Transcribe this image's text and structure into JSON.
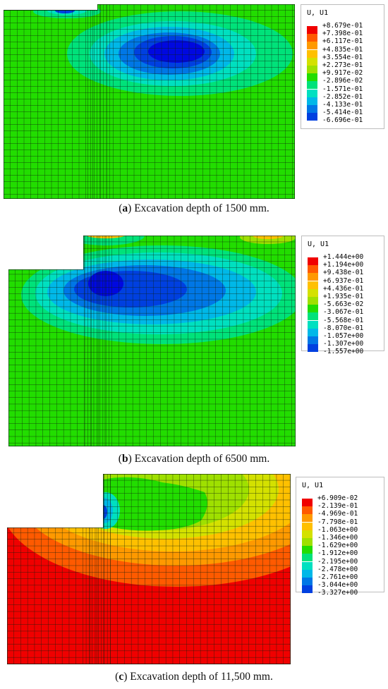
{
  "colors": {
    "red": "#f00000",
    "orange_red": "#ff5a00",
    "orange": "#ff9900",
    "light_orange": "#ffc000",
    "yellow_green": "#d4e100",
    "yellow_green2": "#9fe000",
    "green": "#22dd00",
    "cyan_green": "#00e27a",
    "cyan": "#00e0c0",
    "light_blue": "#00b8e8",
    "mid_blue": "#0077e6",
    "blue": "#0040e0",
    "deep_blue": "#0008e0",
    "mesh": "#0b1f0b"
  },
  "panels": [
    {
      "label": "a",
      "caption_text": "Excavation depth of 1500 mm.",
      "legend_title": "U, U1",
      "legend_values": [
        "+8.679e-01",
        "+7.398e-01",
        "+6.117e-01",
        "+4.835e-01",
        "+3.554e-01",
        "+2.273e-01",
        "+9.917e-02",
        "-2.896e-02",
        "-1.571e-01",
        "-2.852e-01",
        "-4.133e-01",
        "-5.414e-01",
        "-6.696e-01"
      ]
    },
    {
      "label": "b",
      "caption_text": "Excavation depth of 6500 mm.",
      "legend_title": "U, U1",
      "legend_values": [
        "+1.444e+00",
        "+1.194e+00",
        "+9.438e-01",
        "+6.937e-01",
        "+4.436e-01",
        "+1.935e-01",
        "-5.663e-02",
        "-3.067e-01",
        "-5.568e-01",
        "-8.070e-01",
        "-1.057e+00",
        "-1.307e+00",
        "-1.557e+00"
      ]
    },
    {
      "label": "c",
      "caption_text": "Excavation depth of 11,500 mm.",
      "legend_title": "U, U1",
      "legend_values": [
        "+6.909e-02",
        "-2.139e-01",
        "-4.969e-01",
        "-7.798e-01",
        "-1.063e+00",
        "-1.346e+00",
        "-1.629e+00",
        "-1.912e+00",
        "-2.195e+00",
        "-2.478e+00",
        "-2.761e+00",
        "-3.044e+00",
        "-3.327e+00"
      ]
    }
  ],
  "legend_colors": [
    "#f00000",
    "#ff5a00",
    "#ff9900",
    "#ffc000",
    "#d4e100",
    "#9fe000",
    "#22dd00",
    "#00e27a",
    "#00e0c0",
    "#00b8e8",
    "#0077e6",
    "#0040e0",
    "#0008e0"
  ]
}
